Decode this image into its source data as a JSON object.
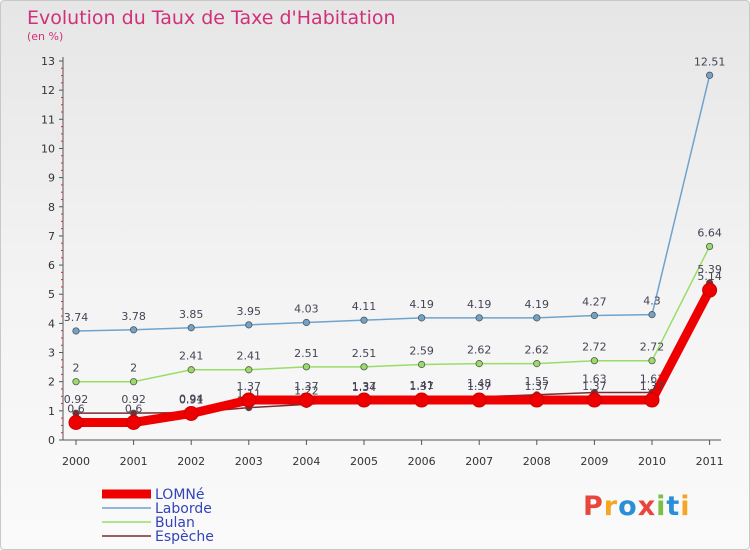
{
  "chart_data": {
    "type": "line",
    "title": "Evolution du Taux de Taxe d'Habitation",
    "subtitle": "(en %)",
    "x": [
      "2000",
      "2001",
      "2002",
      "2003",
      "2004",
      "2005",
      "2006",
      "2007",
      "2008",
      "2009",
      "2010",
      "2011"
    ],
    "y_ticks": [
      "0",
      "1",
      "2",
      "3",
      "4",
      "5",
      "6",
      "7",
      "8",
      "9",
      "10",
      "11",
      "12",
      "13"
    ],
    "ylim": [
      0,
      13
    ],
    "series": [
      {
        "name": "Laborde",
        "color": "#6fa3cc",
        "values": [
          3.74,
          3.78,
          3.85,
          3.95,
          4.03,
          4.11,
          4.19,
          4.19,
          4.19,
          4.27,
          4.3,
          12.51
        ],
        "labels": [
          "3.74",
          "3.78",
          "3.85",
          "3.95",
          "4.03",
          "4.11",
          "4.19",
          "4.19",
          "4.19",
          "4.27",
          "4.3",
          "12.51"
        ]
      },
      {
        "name": "Bulan",
        "color": "#99dd66",
        "values": [
          2,
          2,
          2.41,
          2.41,
          2.51,
          2.51,
          2.59,
          2.62,
          2.62,
          2.72,
          2.72,
          6.64
        ],
        "labels": [
          "2",
          "2",
          "2.41",
          "2.41",
          "2.51",
          "2.51",
          "2.59",
          "2.62",
          "2.62",
          "2.72",
          "2.72",
          "6.64"
        ]
      },
      {
        "name": "Espèche",
        "color": "#7a2b33",
        "values": [
          0.92,
          0.92,
          0.94,
          1.11,
          1.22,
          1.34,
          1.41,
          1.48,
          1.55,
          1.63,
          1.63,
          5.39
        ],
        "labels": [
          "0.92",
          "0.92",
          "0.94",
          "1.11",
          "1.22",
          "1.34",
          "1.41",
          "1.48",
          "1.55",
          "1.63",
          "1.63",
          "5.39"
        ]
      },
      {
        "name": "LOMNé",
        "color": "#ee0000",
        "values": [
          0.6,
          0.6,
          0.91,
          1.37,
          1.37,
          1.37,
          1.37,
          1.37,
          1.37,
          1.37,
          1.37,
          5.14
        ],
        "labels": [
          "0.6",
          "0.6",
          "0.91",
          "1.37",
          "1.37",
          "1.37",
          "1.37",
          "1.37",
          "1.37",
          "1.37",
          "1.37",
          "5.14"
        ]
      }
    ],
    "legend": [
      "LOMNé",
      "Laborde",
      "Bulan",
      "Espèche"
    ],
    "legend_colors": [
      "#ee0000",
      "#6fa3cc",
      "#99dd66",
      "#7a2b33"
    ],
    "legend_position": "bottom-left",
    "grid": false
  },
  "logo": {
    "letters": [
      "P",
      "r",
      "o",
      "x",
      "i",
      "t",
      "i"
    ],
    "colors": [
      "#e8453c",
      "#f5a623",
      "#2a8fd6",
      "#e8453c",
      "#7ac143",
      "#2a8fd6",
      "#f5a623"
    ]
  }
}
